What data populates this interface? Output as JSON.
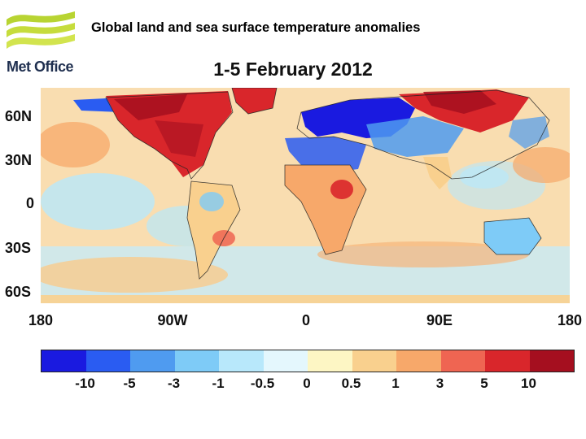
{
  "header": {
    "logo_text": "Met Office",
    "title": "Global land and sea surface temperature anomalies"
  },
  "map": {
    "title": "1-5 February 2012",
    "lat_labels": [
      "60N",
      "30N",
      "0",
      "30S",
      "60S"
    ],
    "lon_labels": [
      "180",
      "90W",
      "0",
      "90E",
      "180"
    ],
    "background_color": "#f9ddb0"
  },
  "legend": {
    "colors": [
      "#1a1ae0",
      "#2a5cf2",
      "#4f9bf0",
      "#7ecbf7",
      "#b8e8fb",
      "#e4f7fd",
      "#fdf6c4",
      "#f9d08e",
      "#f7a86a",
      "#ef6552",
      "#d9262b",
      "#a50f1f"
    ],
    "labels": [
      "-10",
      "-5",
      "-3",
      "-1",
      "-0.5",
      "0",
      "0.5",
      "1",
      "3",
      "5",
      "10"
    ]
  }
}
